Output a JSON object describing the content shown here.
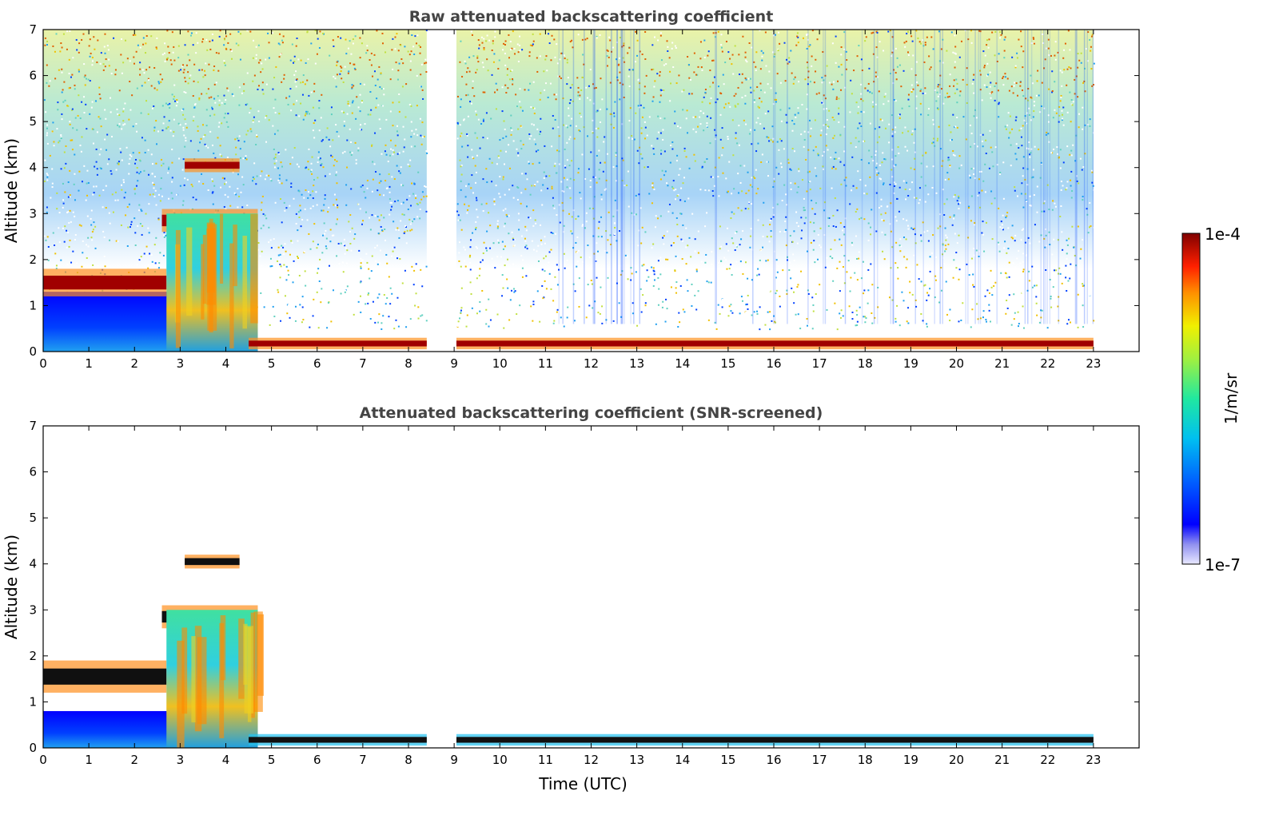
{
  "chart_data": [
    {
      "type": "heatmap",
      "title": "Raw attenuated backscattering coefficient",
      "xlabel": "",
      "ylabel": "Altitude (km)",
      "xlim": [
        0,
        24
      ],
      "ylim": [
        0,
        7
      ],
      "x_ticks": [
        "0",
        "1",
        "2",
        "3",
        "4",
        "5",
        "6",
        "7",
        "8",
        "9",
        "10",
        "11",
        "12",
        "13",
        "14",
        "15",
        "16",
        "17",
        "18",
        "19",
        "20",
        "21",
        "22",
        "23"
      ],
      "y_ticks": [
        "0",
        "1",
        "2",
        "3",
        "4",
        "5",
        "6",
        "7"
      ],
      "data_gap": [
        8.4,
        9.05
      ],
      "data_end": 23,
      "features": [
        {
          "name": "low cloud layer",
          "x": [
            0,
            2.7
          ],
          "altitude_km": [
            1.2,
            1.8
          ],
          "level": "high"
        },
        {
          "name": "mid cloud layer",
          "x": [
            2.6,
            4.7
          ],
          "altitude_km": [
            2.6,
            3.1
          ],
          "level": "high"
        },
        {
          "name": "elevated thin layer",
          "x": [
            3.1,
            4.3
          ],
          "altitude_km": [
            3.9,
            4.2
          ],
          "level": "high"
        },
        {
          "name": "precipitation / aerosol column",
          "x": [
            2.7,
            4.7
          ],
          "altitude_km": [
            0,
            3.0
          ],
          "level": "medium-high"
        },
        {
          "name": "near-surface layer",
          "x": [
            4.5,
            23
          ],
          "altitude_km": [
            0.05,
            0.3
          ],
          "level": "high"
        },
        {
          "name": "noisy background",
          "x": [
            0,
            23
          ],
          "altitude_km": [
            0.4,
            7
          ],
          "level": "low-medium"
        }
      ]
    },
    {
      "type": "heatmap",
      "title": "Attenuated backscattering coefficient (SNR-screened)",
      "xlabel": "Time (UTC)",
      "ylabel": "Altitude (km)",
      "xlim": [
        0,
        24
      ],
      "ylim": [
        0,
        7
      ],
      "x_ticks": [
        "0",
        "1",
        "2",
        "3",
        "4",
        "5",
        "6",
        "7",
        "8",
        "9",
        "10",
        "11",
        "12",
        "13",
        "14",
        "15",
        "16",
        "17",
        "18",
        "19",
        "20",
        "21",
        "22",
        "23"
      ],
      "y_ticks": [
        "0",
        "1",
        "2",
        "3",
        "4",
        "5",
        "6",
        "7"
      ],
      "data_gap": [
        8.4,
        9.05
      ],
      "data_end": 23,
      "features": [
        {
          "name": "low cloud layer",
          "x": [
            0,
            2.7
          ],
          "altitude_km": [
            1.2,
            1.9
          ],
          "level": "high"
        },
        {
          "name": "mid cloud layer",
          "x": [
            2.6,
            4.7
          ],
          "altitude_km": [
            2.6,
            3.1
          ],
          "level": "high"
        },
        {
          "name": "elevated thin layer",
          "x": [
            3.1,
            4.3
          ],
          "altitude_km": [
            3.9,
            4.2
          ],
          "level": "high"
        },
        {
          "name": "precipitation / aerosol column",
          "x": [
            2.7,
            4.7
          ],
          "altitude_km": [
            0,
            3.0
          ],
          "level": "medium-high"
        },
        {
          "name": "near-surface layer",
          "x": [
            4.5,
            23
          ],
          "altitude_km": [
            0.05,
            0.3
          ],
          "level": "high"
        }
      ]
    }
  ],
  "colorbar": {
    "label": "1/m/sr",
    "max_label": "1e-4",
    "min_label": "1e-7",
    "colors": [
      "#e8e8ff",
      "#b0b0f8",
      "#7070f0",
      "#0000ff",
      "#0040ff",
      "#0080ff",
      "#00b8f0",
      "#00e0c0",
      "#40f080",
      "#a0f040",
      "#f0f000",
      "#ffc000",
      "#ff8000",
      "#ff3000",
      "#e00000",
      "#800000"
    ]
  }
}
